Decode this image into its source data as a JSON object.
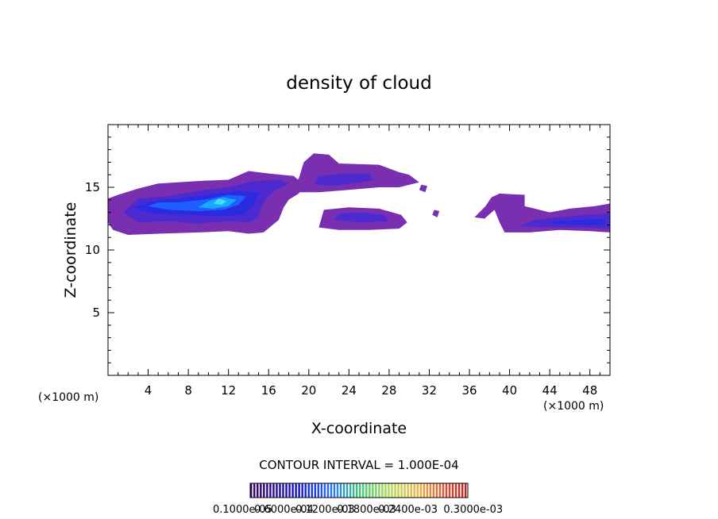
{
  "chart_data": {
    "type": "heatmap",
    "title": "density of cloud",
    "xlabel": "X-coordinate",
    "ylabel": "Z-coordinate",
    "x_unit": "(×1000 m)",
    "x_unit_right": "(×1000 m)",
    "xlim": [
      0,
      50
    ],
    "ylim": [
      0,
      20
    ],
    "x_ticks": [
      4,
      8,
      12,
      16,
      20,
      24,
      28,
      32,
      36,
      40,
      44,
      48
    ],
    "y_ticks": [
      5,
      10,
      15
    ],
    "contour_interval": "CONTOUR INTERVAL = 1.000E-04",
    "colorbar_labels": [
      "0.1000e-05",
      "0.6000e-04",
      "0.1200e-03",
      "0.1800e-03",
      "0.2400e-03",
      "0.3000e-03"
    ],
    "colors": {
      "level1": "#7a2fb0",
      "level2": "#4d2ad0",
      "level3": "#2a2ae0",
      "level4": "#1d60ff",
      "level5": "#19a8ff",
      "level6": "#40e0f0"
    },
    "regions": [
      {
        "name": "cloud-band-west",
        "level": 1,
        "polygon": [
          [
            0,
            12.2
          ],
          [
            0.5,
            11.6
          ],
          [
            2,
            11.2
          ],
          [
            5,
            11.3
          ],
          [
            9,
            11.4
          ],
          [
            12,
            11.5
          ],
          [
            14,
            11.3
          ],
          [
            15.5,
            11.4
          ],
          [
            17,
            12.4
          ],
          [
            17.5,
            13.4
          ],
          [
            18,
            14
          ],
          [
            19,
            14.5
          ],
          [
            19.5,
            15.2
          ],
          [
            18.5,
            15.9
          ],
          [
            16,
            16.1
          ],
          [
            14,
            16.3
          ],
          [
            12,
            15.6
          ],
          [
            9,
            15.5
          ],
          [
            5,
            15.3
          ],
          [
            3,
            14.9
          ],
          [
            1,
            14.4
          ],
          [
            0,
            14.1
          ]
        ]
      },
      {
        "name": "cloud-core-west",
        "level": 2,
        "polygon": [
          [
            1.5,
            13
          ],
          [
            3,
            12.2
          ],
          [
            6,
            12.3
          ],
          [
            9,
            12.1
          ],
          [
            12,
            12.3
          ],
          [
            14,
            12.2
          ],
          [
            15,
            12.6
          ],
          [
            15.5,
            13.8
          ],
          [
            16.5,
            14.7
          ],
          [
            18,
            15.3
          ],
          [
            17,
            15.6
          ],
          [
            14.5,
            15.5
          ],
          [
            12,
            15
          ],
          [
            9,
            14.7
          ],
          [
            6,
            14.3
          ],
          [
            3,
            14.1
          ]
        ]
      },
      {
        "name": "cloud-inner-west",
        "level": 3,
        "polygon": [
          [
            2.5,
            13.4
          ],
          [
            4.5,
            12.9
          ],
          [
            8,
            12.8
          ],
          [
            11,
            12.7
          ],
          [
            13.5,
            12.8
          ],
          [
            14.5,
            13.6
          ],
          [
            15,
            14.6
          ],
          [
            13,
            14.7
          ],
          [
            10,
            14.4
          ],
          [
            7,
            14.1
          ],
          [
            4.5,
            13.9
          ]
        ]
      },
      {
        "name": "cloud-speckle-west",
        "level": 4,
        "polygon": [
          [
            4,
            13.5
          ],
          [
            6,
            13.2
          ],
          [
            9,
            13.1
          ],
          [
            11.5,
            13.2
          ],
          [
            13,
            13.6
          ],
          [
            13.8,
            14.3
          ],
          [
            12,
            14.4
          ],
          [
            9.5,
            14
          ],
          [
            7,
            13.8
          ],
          [
            5,
            13.8
          ]
        ]
      },
      {
        "name": "cloud-bright-west",
        "level": 5,
        "polygon": [
          [
            9,
            13.4
          ],
          [
            10.5,
            13.3
          ],
          [
            12,
            13.5
          ],
          [
            12.8,
            14
          ],
          [
            11.5,
            14.2
          ],
          [
            10,
            13.9
          ]
        ]
      },
      {
        "name": "cloud-peak-west",
        "level": 6,
        "polygon": [
          [
            10.5,
            13.7
          ],
          [
            11.3,
            13.6
          ],
          [
            11.8,
            13.9
          ],
          [
            11,
            14.1
          ]
        ]
      },
      {
        "name": "cloud-upper-mid",
        "level": 1,
        "polygon": [
          [
            18,
            14.8
          ],
          [
            19,
            15.7
          ],
          [
            19.5,
            17
          ],
          [
            20.5,
            17.7
          ],
          [
            22,
            17.6
          ],
          [
            23,
            16.9
          ],
          [
            27,
            16.8
          ],
          [
            29,
            16.2
          ],
          [
            30,
            16
          ],
          [
            31,
            15.4
          ],
          [
            29,
            15
          ],
          [
            27,
            15
          ],
          [
            24,
            14.8
          ],
          [
            21,
            14.6
          ],
          [
            19,
            14.6
          ]
        ]
      },
      {
        "name": "cloud-upper-mid-core",
        "level": 2,
        "polygon": [
          [
            20.5,
            15.3
          ],
          [
            22,
            15.1
          ],
          [
            24.5,
            15.3
          ],
          [
            26.5,
            15.6
          ],
          [
            26,
            16.1
          ],
          [
            23.5,
            16.1
          ],
          [
            21,
            15.9
          ]
        ]
      },
      {
        "name": "cloud-lower-mid",
        "level": 1,
        "polygon": [
          [
            21,
            11.8
          ],
          [
            23,
            11.6
          ],
          [
            26,
            11.6
          ],
          [
            29,
            11.7
          ],
          [
            29.8,
            12.2
          ],
          [
            29.2,
            12.8
          ],
          [
            27,
            13.3
          ],
          [
            24,
            13.4
          ],
          [
            21.5,
            13.2
          ]
        ]
      },
      {
        "name": "cloud-lower-mid-core",
        "level": 2,
        "polygon": [
          [
            22.5,
            12.4
          ],
          [
            25,
            12.2
          ],
          [
            28,
            12.3
          ],
          [
            27.5,
            12.8
          ],
          [
            25,
            13
          ],
          [
            23,
            12.9
          ]
        ]
      },
      {
        "name": "cloud-fleck-a",
        "level": 1,
        "polygon": [
          [
            31,
            14.8
          ],
          [
            31.6,
            14.6
          ],
          [
            31.8,
            15.1
          ],
          [
            31.2,
            15.2
          ]
        ]
      },
      {
        "name": "cloud-fleck-b",
        "level": 1,
        "polygon": [
          [
            32.3,
            12.8
          ],
          [
            32.8,
            12.6
          ],
          [
            33,
            13.1
          ],
          [
            32.5,
            13.2
          ]
        ]
      },
      {
        "name": "cloud-band-east",
        "level": 1,
        "polygon": [
          [
            36.5,
            12.6
          ],
          [
            37.5,
            12.5
          ],
          [
            38.5,
            13.2
          ],
          [
            39,
            12.2
          ],
          [
            39.5,
            11.4
          ],
          [
            42,
            11.4
          ],
          [
            45,
            11.6
          ],
          [
            48,
            11.5
          ],
          [
            50,
            11.4
          ],
          [
            50,
            13.7
          ],
          [
            48.5,
            13.5
          ],
          [
            46,
            13.3
          ],
          [
            44,
            13
          ],
          [
            41.5,
            13.5
          ],
          [
            41.5,
            14.4
          ],
          [
            39,
            14.5
          ],
          [
            38.2,
            14.2
          ],
          [
            37.6,
            13.5
          ]
        ]
      },
      {
        "name": "cloud-core-east",
        "level": 2,
        "polygon": [
          [
            41,
            11.9
          ],
          [
            44,
            11.8
          ],
          [
            47,
            11.8
          ],
          [
            50,
            11.7
          ],
          [
            50,
            12.9
          ],
          [
            47.5,
            12.8
          ],
          [
            45,
            12.6
          ],
          [
            42.5,
            12.4
          ]
        ]
      },
      {
        "name": "cloud-inner-east",
        "level": 3,
        "polygon": [
          [
            44,
            12.1
          ],
          [
            46.5,
            12
          ],
          [
            49.5,
            12
          ],
          [
            49.5,
            12.5
          ],
          [
            47,
            12.4
          ],
          [
            44.5,
            12.3
          ]
        ]
      }
    ]
  }
}
